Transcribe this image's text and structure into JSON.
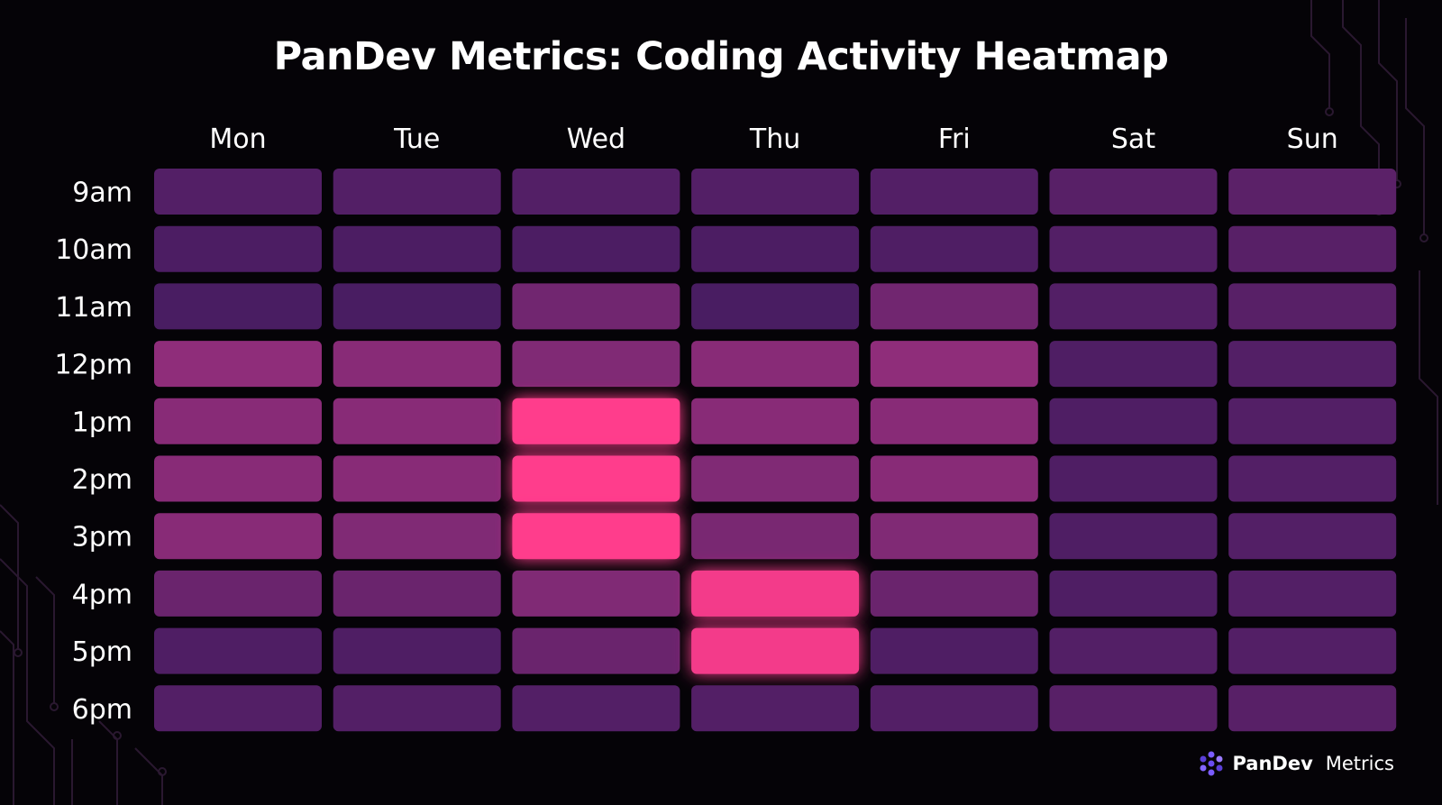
{
  "title": "PanDev Metrics: Coding Activity Heatmap",
  "brand": {
    "name": "PanDev",
    "suffix": "Metrics",
    "icon": "pandev-logo-icon"
  },
  "colors": {
    "background": "#050307",
    "low": "#3d1a5e",
    "mid": "#8f2d7a",
    "high": "#ff3d8c",
    "label": "#ffffff"
  },
  "chart_data": {
    "type": "heatmap",
    "title": "PanDev Metrics: Coding Activity Heatmap",
    "x_categories": [
      "Mon",
      "Tue",
      "Wed",
      "Thu",
      "Fri",
      "Sat",
      "Sun"
    ],
    "y_categories": [
      "9am",
      "10am",
      "11am",
      "12pm",
      "1pm",
      "2pm",
      "3pm",
      "4pm",
      "5pm",
      "6pm"
    ],
    "scale": [
      0,
      1
    ],
    "values": [
      [
        0.15,
        0.15,
        0.15,
        0.15,
        0.15,
        0.18,
        0.2
      ],
      [
        0.1,
        0.1,
        0.1,
        0.1,
        0.12,
        0.15,
        0.18
      ],
      [
        0.08,
        0.08,
        0.35,
        0.08,
        0.35,
        0.15,
        0.18
      ],
      [
        0.55,
        0.5,
        0.45,
        0.5,
        0.55,
        0.12,
        0.15
      ],
      [
        0.5,
        0.5,
        1.0,
        0.5,
        0.5,
        0.12,
        0.15
      ],
      [
        0.5,
        0.5,
        1.0,
        0.45,
        0.5,
        0.12,
        0.15
      ],
      [
        0.5,
        0.45,
        1.0,
        0.4,
        0.45,
        0.12,
        0.15
      ],
      [
        0.3,
        0.3,
        0.45,
        0.95,
        0.3,
        0.12,
        0.15
      ],
      [
        0.12,
        0.12,
        0.3,
        0.95,
        0.12,
        0.15,
        0.15
      ],
      [
        0.15,
        0.15,
        0.15,
        0.15,
        0.15,
        0.18,
        0.18
      ]
    ]
  }
}
